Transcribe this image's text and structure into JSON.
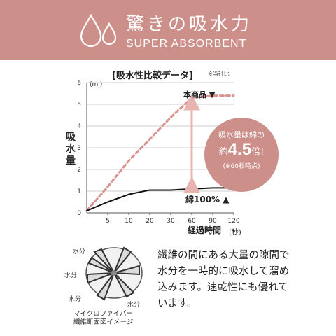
{
  "banner": {
    "title": "驚きの吸水力",
    "subtitle": "SUPER ABSORBENT",
    "icon": "water-drops-icon",
    "color": "#cc8f8a"
  },
  "chart_title": "[吸水性比較データ]",
  "chart_note": "※当社比",
  "chart_data": {
    "type": "line",
    "ylabel": "吸水量",
    "yunit": "(ml)",
    "xlabel": "経過時間",
    "xunit": "(秒)",
    "ylim": [
      0,
      6
    ],
    "yticks": [
      "0",
      "1",
      "2",
      "3",
      "4",
      "5",
      "6"
    ],
    "xticks": [
      "5",
      "10",
      "20",
      "30",
      "60",
      "90",
      "120"
    ],
    "x": [
      0,
      5,
      10,
      20,
      30,
      60,
      90,
      120
    ],
    "series": [
      {
        "name": "本商品",
        "marker": "▼",
        "style": "dashed",
        "color": "#d9938e",
        "values": [
          0.1,
          1.2,
          2.4,
          3.4,
          4.4,
          5.3,
          5.4,
          5.4
        ]
      },
      {
        "name": "綿100%",
        "marker": "▲",
        "style": "solid",
        "color": "#111111",
        "values": [
          0.1,
          0.5,
          0.85,
          1.05,
          1.05,
          1.1,
          1.15,
          1.15
        ]
      }
    ],
    "grid": true,
    "arrow_color": "#e8b4b0"
  },
  "callout": {
    "line1": "吸水量は綿の",
    "prefix": "約",
    "value": "4.5",
    "suffix": "倍!",
    "note": "(※60秒時点)"
  },
  "description": "繊維の間にある大量の隙間で水分を一時的に吸水して溜め込みます。速乾性にも優れています。",
  "fiber": {
    "caption_line1": "マイクロファイバー",
    "caption_line2": "繊維断面図イメージ",
    "water_labels": [
      "水分",
      "水分",
      "水分",
      "水分"
    ]
  }
}
